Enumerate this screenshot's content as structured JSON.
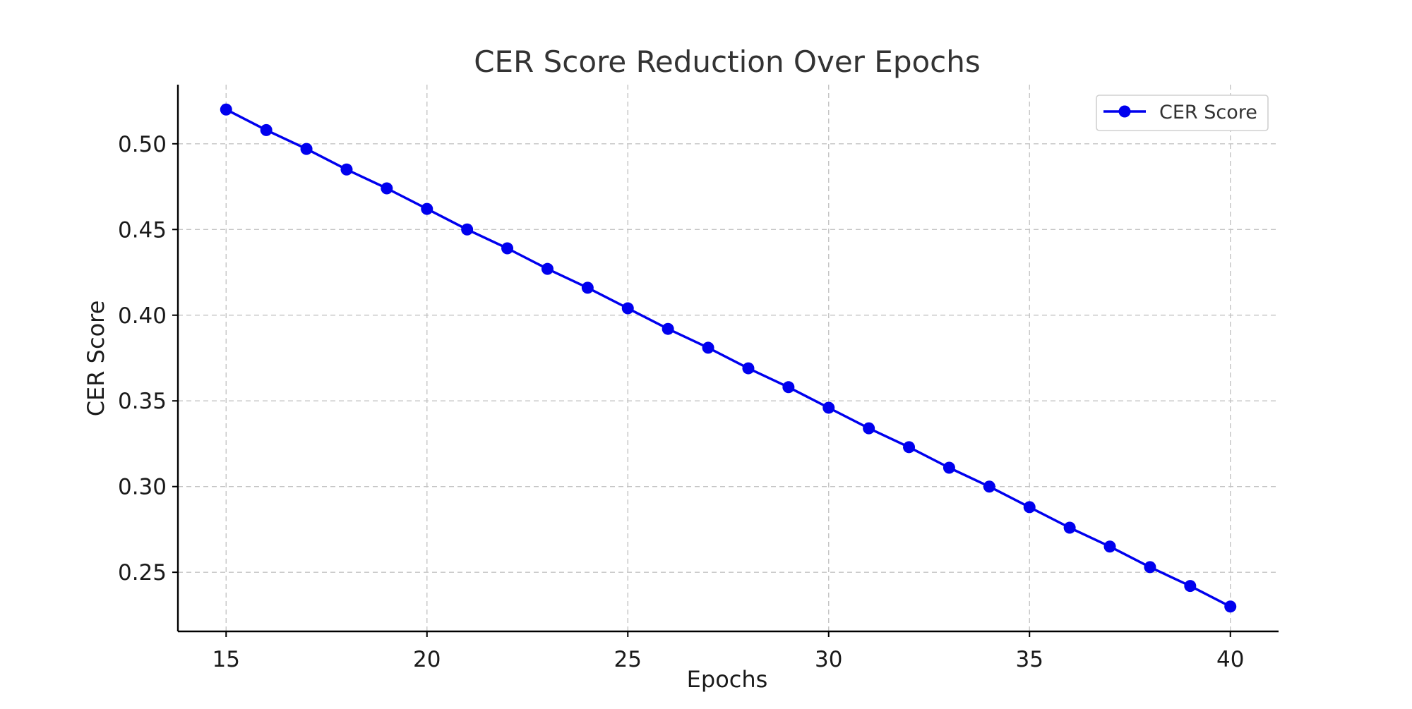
{
  "chart_data": {
    "type": "line",
    "title": "CER Score Reduction Over Epochs",
    "xlabel": "Epochs",
    "ylabel": "CER Score",
    "xlim": [
      13.8,
      41.2
    ],
    "ylim": [
      0.2155,
      0.5345
    ],
    "xticks": [
      15,
      20,
      25,
      30,
      35,
      40
    ],
    "xtick_labels": [
      "15",
      "20",
      "25",
      "30",
      "35",
      "40"
    ],
    "yticks": [
      0.25,
      0.3,
      0.35,
      0.4,
      0.45,
      0.5
    ],
    "ytick_labels": [
      "0.25",
      "0.30",
      "0.35",
      "0.40",
      "0.45",
      "0.50"
    ],
    "grid": true,
    "legend": "top-right",
    "series": [
      {
        "name": "CER Score",
        "color": "#0000ee",
        "marker": "circle",
        "x": [
          15,
          16,
          17,
          18,
          19,
          20,
          21,
          22,
          23,
          24,
          25,
          26,
          27,
          28,
          29,
          30,
          31,
          32,
          33,
          34,
          35,
          36,
          37,
          38,
          39,
          40
        ],
        "y": [
          0.52,
          0.508,
          0.497,
          0.485,
          0.474,
          0.462,
          0.45,
          0.439,
          0.427,
          0.416,
          0.404,
          0.392,
          0.381,
          0.369,
          0.358,
          0.346,
          0.334,
          0.323,
          0.311,
          0.3,
          0.288,
          0.276,
          0.265,
          0.253,
          0.242,
          0.23
        ]
      }
    ]
  }
}
